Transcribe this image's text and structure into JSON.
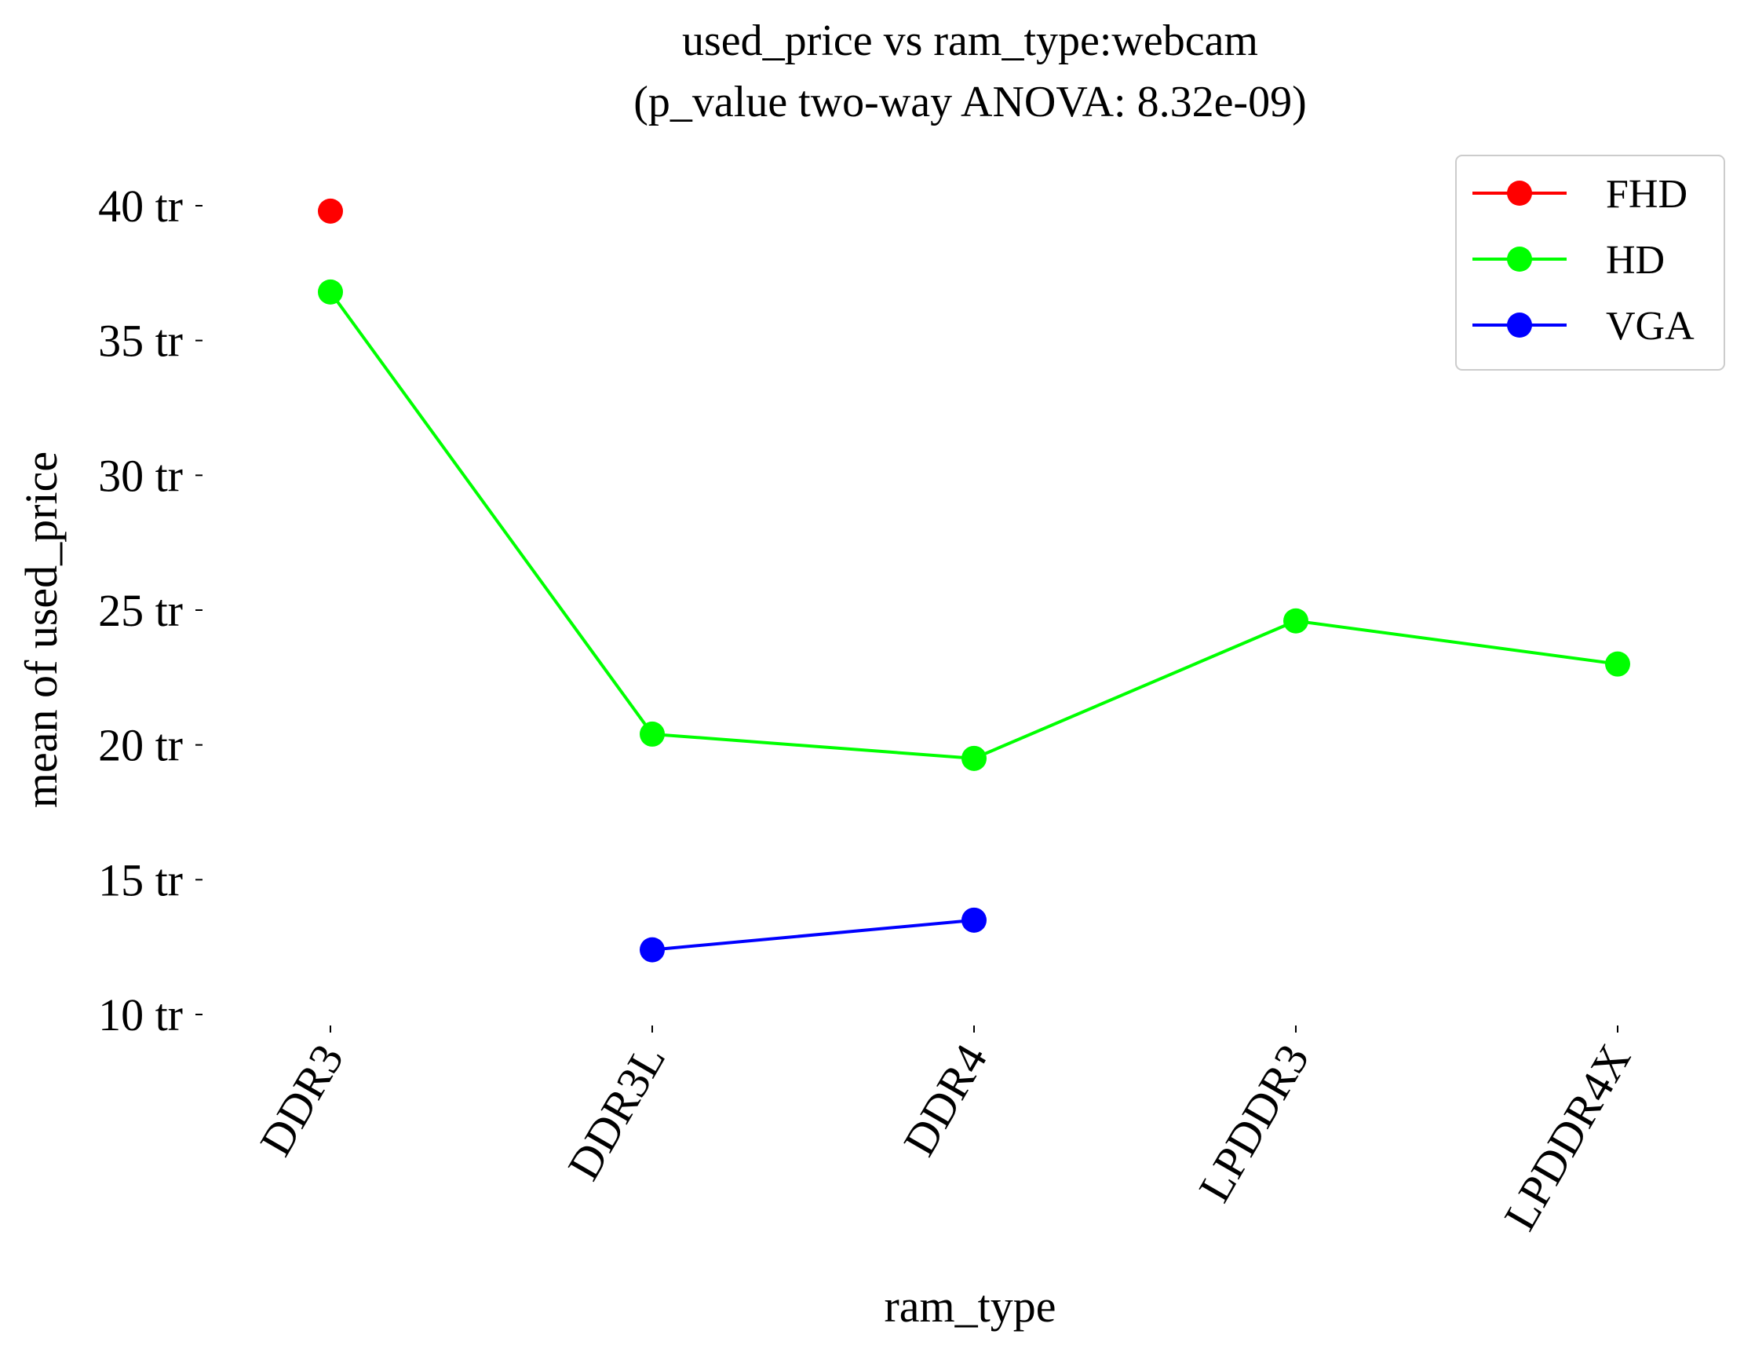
{
  "chart_data": {
    "type": "line",
    "title_line1": "used_price vs ram_type:webcam",
    "title_line2": "(p_value two-way ANOVA: 8.32e-09)",
    "xlabel": "ram_type",
    "ylabel": "mean of used_price",
    "categories": [
      "DDR3",
      "DDR3L",
      "DDR4",
      "LPDDR3",
      "LPDDR4X"
    ],
    "ylim": [
      10,
      40
    ],
    "yticks": [
      {
        "value": 10,
        "label": "10 tr"
      },
      {
        "value": 15,
        "label": "15 tr"
      },
      {
        "value": 20,
        "label": "20 tr"
      },
      {
        "value": 25,
        "label": "25 tr"
      },
      {
        "value": 30,
        "label": "30 tr"
      },
      {
        "value": 35,
        "label": "35 tr"
      },
      {
        "value": 40,
        "label": "40 tr"
      }
    ],
    "grid": false,
    "legend_position": "top-right",
    "series": [
      {
        "name": "FHD",
        "color": "#ff0000",
        "values": [
          39.8,
          null,
          null,
          null,
          null
        ]
      },
      {
        "name": "HD",
        "color": "#00ff00",
        "values": [
          36.8,
          20.4,
          19.5,
          24.6,
          23.0
        ]
      },
      {
        "name": "VGA",
        "color": "#0000ff",
        "values": [
          null,
          12.4,
          13.5,
          null,
          null
        ]
      }
    ]
  }
}
